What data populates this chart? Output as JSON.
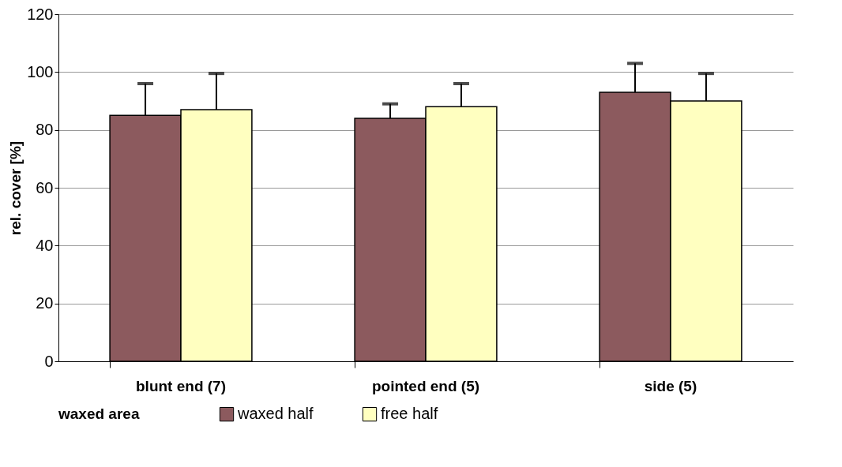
{
  "chart_data": {
    "type": "bar",
    "xlabel": null,
    "ylabel": "rel. cover [%]",
    "legend_title": "waxed area",
    "categories": [
      "blunt end (7)",
      "pointed end (5)",
      "side (5)"
    ],
    "series": [
      {
        "name": "waxed half",
        "color": "#8c5a5e",
        "values": [
          85,
          84,
          93
        ],
        "errors": [
          [
            85,
            96
          ],
          [
            84,
            89
          ],
          [
            93,
            103
          ]
        ]
      },
      {
        "name": "free half",
        "color": "#ffffc0",
        "values": [
          87,
          88,
          90
        ],
        "errors": [
          [
            87,
            99.5
          ],
          [
            88,
            96
          ],
          [
            90,
            99.5
          ]
        ]
      }
    ],
    "ylim": [
      0,
      120
    ],
    "yticks": [
      0,
      20,
      40,
      60,
      80,
      100,
      120
    ],
    "grid": "y",
    "legend": "bottom"
  }
}
